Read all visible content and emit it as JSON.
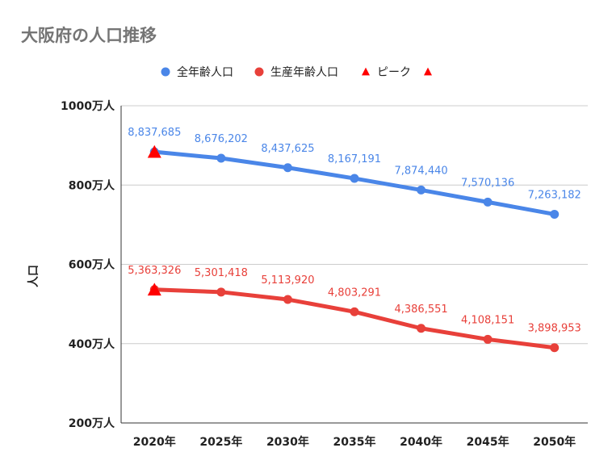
{
  "chart_data": {
    "type": "line",
    "title": "大阪府の人口推移",
    "xlabel": "",
    "ylabel": "人口",
    "categories": [
      "2020年",
      "2025年",
      "2030年",
      "2035年",
      "2040年",
      "2045年",
      "2050年"
    ],
    "ylim": [
      200,
      1000
    ],
    "yticks": [
      {
        "value": 1000,
        "label": "1000万人"
      },
      {
        "value": 800,
        "label": "800万人"
      },
      {
        "value": 600,
        "label": "600万人"
      },
      {
        "value": 400,
        "label": "400万人"
      },
      {
        "value": 200,
        "label": "200万人"
      }
    ],
    "series": [
      {
        "name": "全年齢人口",
        "color": "#4a86e8",
        "values": [
          8837685,
          8676202,
          8437625,
          8167191,
          7874440,
          7570136,
          7263182
        ],
        "labels": [
          "8,837,685",
          "8,676,202",
          "8,437,625",
          "8,167,191",
          "7,874,440",
          "7,570,136",
          "7,263,182"
        ]
      },
      {
        "name": "生産年齢人口",
        "color": "#e8403a",
        "values": [
          5363326,
          5301418,
          5113920,
          4803291,
          4386551,
          4108151,
          3898953
        ],
        "labels": [
          "5,363,326",
          "5,301,418",
          "5,113,920",
          "4,803,291",
          "4,386,551",
          "4,108,151",
          "3,898,953"
        ]
      }
    ],
    "peak_markers": [
      {
        "name": "ピーク",
        "category": "2020年",
        "value": 8837685,
        "color": "#ff0000"
      },
      {
        "name": "",
        "category": "2020年",
        "value": 5363326,
        "color": "#ff0000"
      }
    ],
    "legend": [
      "全年齢人口",
      "生産年齢人口",
      "ピーク",
      ""
    ],
    "legend_position": "top",
    "grid": true
  }
}
